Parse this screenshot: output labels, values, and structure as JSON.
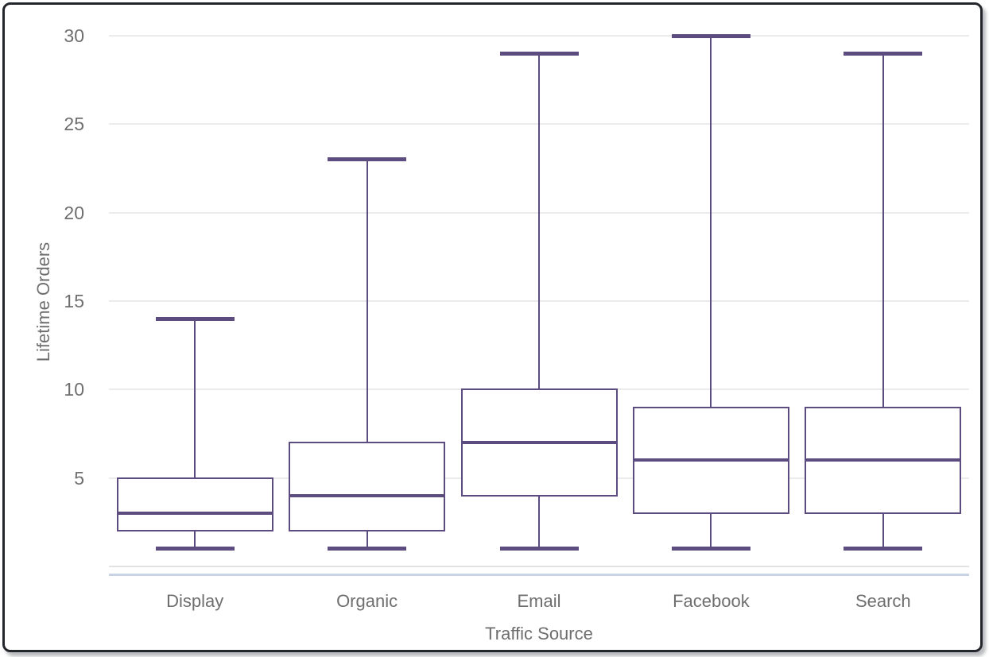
{
  "chart_data": {
    "type": "boxplot",
    "title": "",
    "xlabel": "Traffic Source",
    "ylabel": "Lifetime Orders",
    "categories": [
      "Display",
      "Organic",
      "Email",
      "Facebook",
      "Search"
    ],
    "series": [
      {
        "name": "Display",
        "min": 1,
        "q1": 2,
        "median": 3,
        "q3": 5,
        "max": 14
      },
      {
        "name": "Organic",
        "min": 1,
        "q1": 2,
        "median": 4,
        "q3": 7,
        "max": 23
      },
      {
        "name": "Email",
        "min": 1,
        "q1": 4,
        "median": 7,
        "q3": 10,
        "max": 29
      },
      {
        "name": "Facebook",
        "min": 1,
        "q1": 3,
        "median": 6,
        "q3": 9,
        "max": 30
      },
      {
        "name": "Search",
        "min": 1,
        "q1": 3,
        "median": 6,
        "q3": 9,
        "max": 29
      }
    ],
    "ylim": [
      0,
      30
    ],
    "yticks": [
      5,
      10,
      15,
      20,
      25,
      30
    ],
    "grid": true,
    "legend": "none",
    "colors": {
      "box_stroke": "#5d4c7f",
      "box_fill": "#ffffff",
      "gridline": "#ebebeb",
      "baseline": "#e2e2e2",
      "axis_accent": "#c9d3e6",
      "tick_label": "#6e6e6e",
      "axis_title": "#6e6e6e"
    }
  }
}
